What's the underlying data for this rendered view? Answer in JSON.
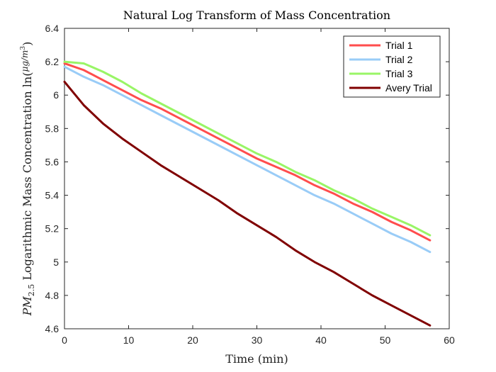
{
  "chart_data": {
    "type": "line",
    "title": "Natural Log Transform of Mass Concentration",
    "xlabel": "Time (min)",
    "ylabel": "PM2.5 Logarithmic Mass Concentration ln(μg/m3)",
    "xlim": [
      0,
      60
    ],
    "ylim": [
      4.6,
      6.4
    ],
    "xticks": [
      "0",
      "10",
      "20",
      "30",
      "40",
      "50",
      "60"
    ],
    "yticks": [
      "4.6",
      "4.8",
      "5",
      "5.2",
      "5.4",
      "5.6",
      "5.8",
      "6",
      "6.2",
      "6.4"
    ],
    "grid": false,
    "legend_position": "top-right",
    "x": [
      0,
      3,
      6,
      9,
      12,
      15,
      18,
      21,
      24,
      27,
      30,
      33,
      36,
      39,
      42,
      45,
      48,
      51,
      54,
      57
    ],
    "series": [
      {
        "name": "Trial 1",
        "color": "#ff4d4d",
        "values": [
          6.19,
          6.15,
          6.09,
          6.03,
          5.97,
          5.92,
          5.86,
          5.8,
          5.74,
          5.68,
          5.62,
          5.57,
          5.52,
          5.46,
          5.41,
          5.35,
          5.3,
          5.24,
          5.19,
          5.13
        ]
      },
      {
        "name": "Trial 2",
        "color": "#99ccf7",
        "values": [
          6.17,
          6.11,
          6.06,
          6.0,
          5.94,
          5.88,
          5.82,
          5.76,
          5.7,
          5.64,
          5.58,
          5.52,
          5.46,
          5.4,
          5.35,
          5.29,
          5.23,
          5.17,
          5.12,
          5.06
        ]
      },
      {
        "name": "Trial 3",
        "color": "#99f566",
        "values": [
          6.2,
          6.19,
          6.14,
          6.08,
          6.01,
          5.95,
          5.89,
          5.83,
          5.77,
          5.71,
          5.65,
          5.6,
          5.54,
          5.49,
          5.43,
          5.38,
          5.32,
          5.27,
          5.22,
          5.16
        ]
      },
      {
        "name": "Avery Trial",
        "color": "#800000",
        "values": [
          6.08,
          5.94,
          5.83,
          5.74,
          5.66,
          5.58,
          5.51,
          5.44,
          5.37,
          5.29,
          5.22,
          5.15,
          5.07,
          5.0,
          4.94,
          4.87,
          4.8,
          4.74,
          4.68,
          4.62
        ]
      }
    ]
  }
}
